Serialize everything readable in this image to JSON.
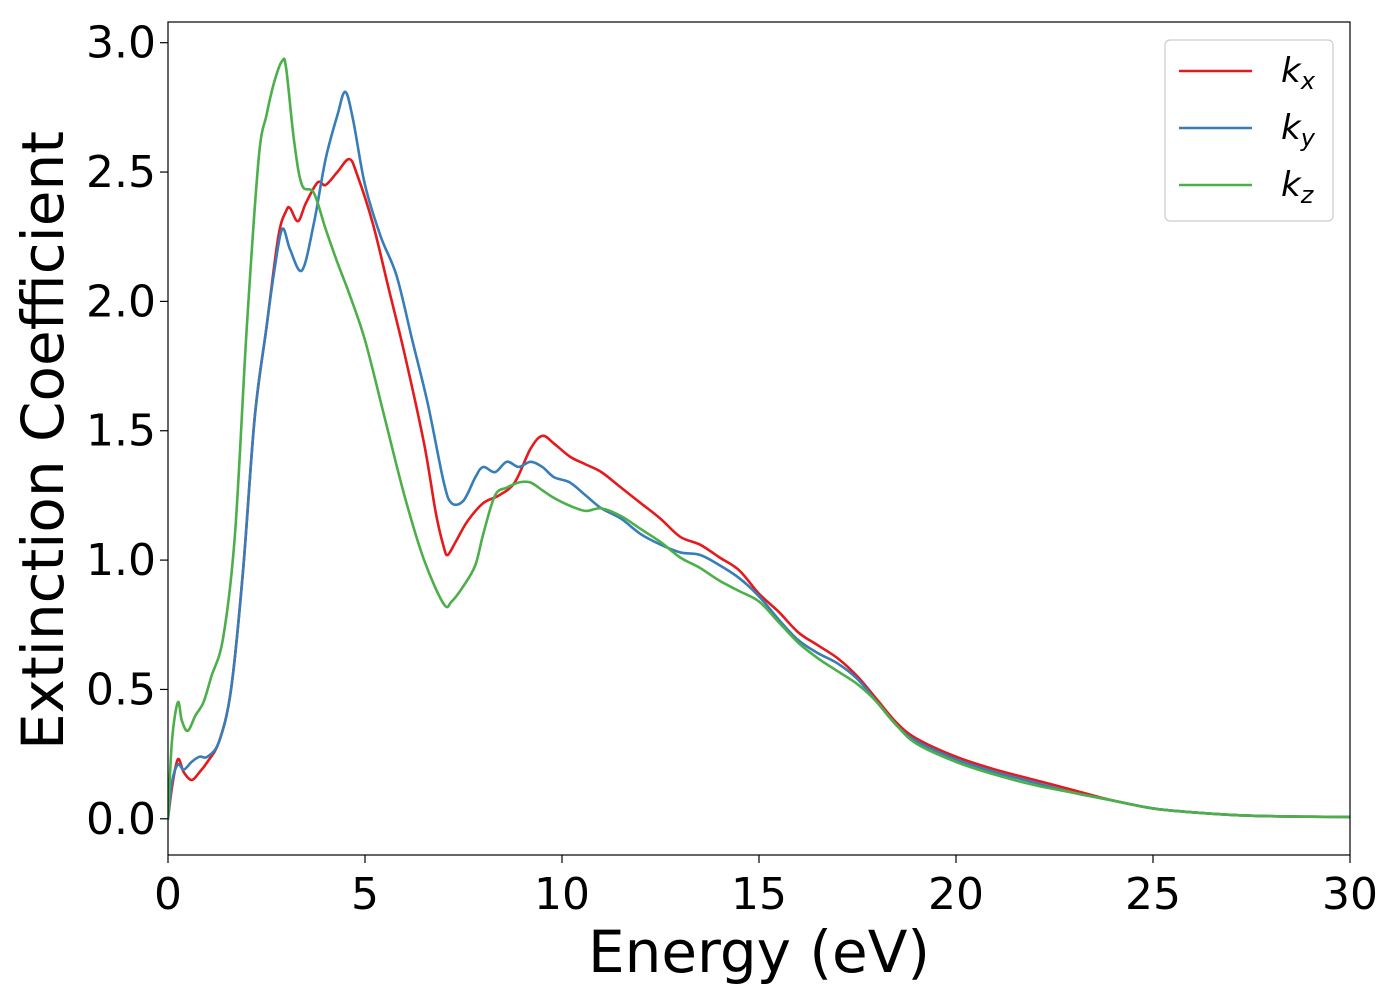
{
  "chart_data": {
    "type": "line",
    "xlabel": "Energy (eV)",
    "ylabel": "Extinction Coefficient",
    "xlim": [
      0,
      30
    ],
    "ylim": [
      -0.14,
      3.08
    ],
    "xticks": [
      0,
      5,
      10,
      15,
      20,
      25,
      30
    ],
    "xtick_labels": [
      "0",
      "5",
      "10",
      "15",
      "20",
      "25",
      "30"
    ],
    "yticks": [
      0.0,
      0.5,
      1.0,
      1.5,
      2.0,
      2.5,
      3.0
    ],
    "ytick_labels": [
      "0.0",
      "0.5",
      "1.0",
      "1.5",
      "2.0",
      "2.5",
      "3.0"
    ],
    "grid": false,
    "legend_position": "top-right",
    "series": [
      {
        "name": "k_x",
        "label_main": "k",
        "label_sub": "x",
        "color": "#e41a1c",
        "x": [
          0,
          0.1,
          0.25,
          0.4,
          0.6,
          0.8,
          1.0,
          1.3,
          1.6,
          1.9,
          2.2,
          2.5,
          2.8,
          3.0,
          3.1,
          3.3,
          3.5,
          3.8,
          4.0,
          4.3,
          4.6,
          4.8,
          5.2,
          5.6,
          6.0,
          6.5,
          6.8,
          7.0,
          7.1,
          7.3,
          7.6,
          8.0,
          8.4,
          8.8,
          9.2,
          9.5,
          9.8,
          10.2,
          10.6,
          11.0,
          11.5,
          12.0,
          12.5,
          13.0,
          13.5,
          14.0,
          14.5,
          15.0,
          15.5,
          16.0,
          16.5,
          17.0,
          17.5,
          18.0,
          18.5,
          19.0,
          20.0,
          21.0,
          22.0,
          23.0,
          24.0,
          25.0,
          26.0,
          27.0,
          28.0,
          29.0,
          30.0
        ],
        "y": [
          0.0,
          0.12,
          0.23,
          0.18,
          0.15,
          0.18,
          0.22,
          0.3,
          0.5,
          0.95,
          1.55,
          1.9,
          2.25,
          2.35,
          2.36,
          2.31,
          2.38,
          2.46,
          2.45,
          2.5,
          2.55,
          2.49,
          2.3,
          2.05,
          1.8,
          1.45,
          1.18,
          1.05,
          1.02,
          1.07,
          1.15,
          1.22,
          1.25,
          1.3,
          1.43,
          1.48,
          1.45,
          1.4,
          1.37,
          1.34,
          1.28,
          1.22,
          1.16,
          1.09,
          1.06,
          1.01,
          0.96,
          0.87,
          0.8,
          0.72,
          0.67,
          0.62,
          0.55,
          0.46,
          0.37,
          0.31,
          0.24,
          0.19,
          0.15,
          0.11,
          0.07,
          0.04,
          0.025,
          0.015,
          0.01,
          0.008,
          0.007
        ]
      },
      {
        "name": "k_y",
        "label_main": "k",
        "label_sub": "y",
        "color": "#377eb8",
        "x": [
          0,
          0.1,
          0.25,
          0.4,
          0.6,
          0.8,
          1.0,
          1.3,
          1.6,
          1.9,
          2.2,
          2.5,
          2.7,
          2.9,
          3.1,
          3.4,
          3.7,
          4.0,
          4.3,
          4.5,
          4.7,
          5.0,
          5.4,
          5.8,
          6.2,
          6.6,
          7.0,
          7.2,
          7.5,
          7.8,
          8.0,
          8.3,
          8.6,
          8.9,
          9.2,
          9.5,
          9.8,
          10.2,
          10.6,
          11.0,
          11.5,
          12.0,
          12.5,
          13.0,
          13.5,
          14.0,
          14.5,
          15.0,
          15.5,
          16.0,
          16.5,
          17.0,
          17.5,
          18.0,
          18.5,
          19.0,
          20.0,
          21.0,
          22.0,
          23.0,
          24.0,
          25.0,
          26.0,
          27.0,
          28.0,
          29.0,
          30.0
        ],
        "y": [
          0.0,
          0.14,
          0.21,
          0.19,
          0.22,
          0.24,
          0.24,
          0.3,
          0.5,
          0.95,
          1.55,
          1.9,
          2.12,
          2.28,
          2.2,
          2.12,
          2.3,
          2.55,
          2.72,
          2.81,
          2.7,
          2.45,
          2.25,
          2.1,
          1.85,
          1.6,
          1.3,
          1.22,
          1.23,
          1.32,
          1.36,
          1.34,
          1.38,
          1.36,
          1.38,
          1.36,
          1.32,
          1.3,
          1.25,
          1.2,
          1.16,
          1.1,
          1.06,
          1.03,
          1.02,
          0.98,
          0.93,
          0.86,
          0.77,
          0.69,
          0.64,
          0.6,
          0.54,
          0.45,
          0.36,
          0.3,
          0.23,
          0.18,
          0.14,
          0.1,
          0.07,
          0.04,
          0.025,
          0.015,
          0.01,
          0.008,
          0.007
        ]
      },
      {
        "name": "k_z",
        "label_main": "k",
        "label_sub": "z",
        "color": "#4daf4a",
        "x": [
          0,
          0.1,
          0.25,
          0.35,
          0.5,
          0.7,
          0.9,
          1.1,
          1.4,
          1.7,
          2.0,
          2.3,
          2.5,
          2.7,
          2.9,
          3.0,
          3.2,
          3.4,
          3.7,
          4.0,
          4.3,
          4.6,
          5.0,
          5.5,
          6.0,
          6.5,
          7.0,
          7.2,
          7.5,
          7.8,
          8.0,
          8.3,
          8.6,
          8.9,
          9.2,
          9.5,
          9.8,
          10.2,
          10.6,
          11.0,
          11.5,
          12.0,
          12.5,
          13.0,
          13.5,
          14.0,
          14.5,
          15.0,
          15.5,
          16.0,
          16.5,
          17.0,
          17.5,
          18.0,
          18.5,
          19.0,
          20.0,
          21.0,
          22.0,
          23.0,
          24.0,
          25.0,
          26.0,
          27.0,
          28.0,
          29.0,
          30.0
        ],
        "y": [
          0.0,
          0.3,
          0.45,
          0.38,
          0.34,
          0.4,
          0.45,
          0.55,
          0.7,
          1.1,
          1.9,
          2.55,
          2.72,
          2.85,
          2.93,
          2.9,
          2.62,
          2.45,
          2.42,
          2.28,
          2.15,
          2.03,
          1.85,
          1.55,
          1.25,
          1.0,
          0.83,
          0.84,
          0.9,
          0.98,
          1.1,
          1.25,
          1.28,
          1.3,
          1.3,
          1.27,
          1.24,
          1.21,
          1.19,
          1.2,
          1.17,
          1.12,
          1.07,
          1.01,
          0.97,
          0.92,
          0.88,
          0.84,
          0.76,
          0.68,
          0.62,
          0.57,
          0.52,
          0.45,
          0.36,
          0.29,
          0.22,
          0.17,
          0.13,
          0.1,
          0.07,
          0.04,
          0.025,
          0.015,
          0.01,
          0.008,
          0.007
        ]
      }
    ]
  }
}
